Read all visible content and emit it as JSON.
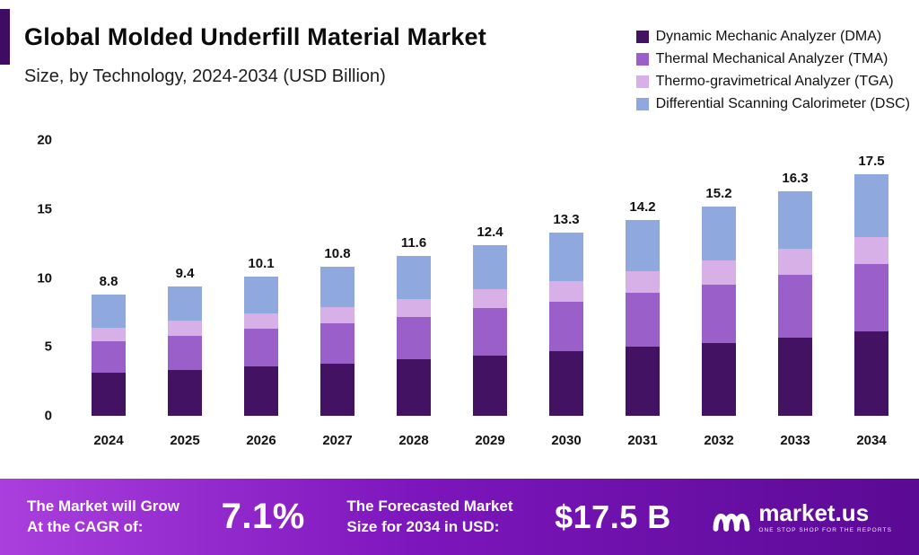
{
  "title": "Global Molded Underfill Material Market",
  "subtitle": "Size, by Technology, 2024-2034 (USD Billion)",
  "legend": [
    {
      "label": "Dynamic Mechanic Analyzer (DMA)",
      "color": "#431263"
    },
    {
      "label": "Thermal Mechanical Analyzer (TMA)",
      "color": "#9a5fc9"
    },
    {
      "label": "Thermo-gravimetrical Analyzer (TGA)",
      "color": "#d8b0e8"
    },
    {
      "label": "Differential Scanning Calorimeter (DSC)",
      "color": "#8fa9de"
    }
  ],
  "chart_data": {
    "type": "bar",
    "stacked": true,
    "title": "Global Molded Underfill Material Market Size, by Technology, 2024-2034 (USD Billion)",
    "categories": [
      "2024",
      "2025",
      "2026",
      "2027",
      "2028",
      "2029",
      "2030",
      "2031",
      "2032",
      "2033",
      "2034"
    ],
    "totals": [
      8.8,
      9.4,
      10.1,
      10.8,
      11.6,
      12.4,
      13.3,
      14.2,
      15.2,
      16.3,
      17.5
    ],
    "series": [
      {
        "name": "Dynamic Mechanic Analyzer (DMA)",
        "color": "#431263",
        "values": [
          3.1,
          3.3,
          3.6,
          3.8,
          4.1,
          4.4,
          4.7,
          5.0,
          5.3,
          5.7,
          6.1
        ]
      },
      {
        "name": "Thermal Mechanical Analyzer (TMA)",
        "color": "#9a5fc9",
        "values": [
          2.3,
          2.5,
          2.7,
          2.9,
          3.1,
          3.4,
          3.6,
          3.9,
          4.2,
          4.5,
          4.9
        ]
      },
      {
        "name": "Thermo-gravimetrical Analyzer (TGA)",
        "color": "#d8b0e8",
        "values": [
          1.0,
          1.1,
          1.1,
          1.2,
          1.3,
          1.4,
          1.5,
          1.6,
          1.8,
          1.9,
          2.0
        ]
      },
      {
        "name": "Differential Scanning Calorimeter (DSC)",
        "color": "#8fa9de",
        "values": [
          2.4,
          2.5,
          2.7,
          2.9,
          3.1,
          3.2,
          3.5,
          3.7,
          3.9,
          4.2,
          4.5
        ]
      }
    ],
    "xlabel": "",
    "ylabel": "",
    "ylim": [
      0,
      20
    ],
    "yticks": [
      0,
      5,
      10,
      15,
      20
    ],
    "grid": false,
    "legend_position": "top-right"
  },
  "footer": {
    "left_label_line1": "The Market will Grow",
    "left_label_line2": "At the CAGR of:",
    "cagr_value": "7.1%",
    "mid_label_line1": "The Forecasted Market",
    "mid_label_line2": "Size for 2034 in USD:",
    "forecast_value": "$17.5 B",
    "brand": "market.us",
    "brand_tagline": "ONE STOP SHOP FOR THE REPORTS"
  },
  "colors": {
    "accent_stripe": "#400b63",
    "footer_gradient_start": "#aa3fdd",
    "footer_gradient_end": "#5a0a94",
    "text": "#111111"
  }
}
